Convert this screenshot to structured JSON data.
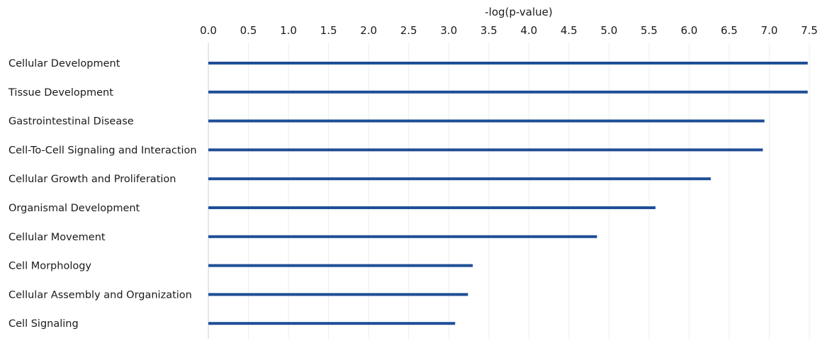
{
  "chart_data": {
    "type": "bar",
    "orientation": "horizontal",
    "xlabel": "-log(p-value)",
    "xlabel_position": "top",
    "xlim": [
      0.0,
      7.5
    ],
    "xticks": [
      "0.0",
      "0.5",
      "1.0",
      "1.5",
      "2.0",
      "2.5",
      "3.0",
      "3.5",
      "4.0",
      "4.5",
      "5.0",
      "5.5",
      "6.0",
      "6.5",
      "7.0",
      "7.5"
    ],
    "categories": [
      "Cellular Development",
      "Tissue Development",
      "Gastrointestinal Disease",
      "Cell-To-Cell Signaling and Interaction",
      "Cellular Growth and Proliferation",
      "Organismal Development",
      "Cellular Movement",
      "Cell Morphology",
      "Cellular Assembly and Organization",
      "Cell Signaling"
    ],
    "values": [
      7.48,
      7.48,
      6.94,
      6.92,
      6.27,
      5.58,
      4.85,
      3.3,
      3.24,
      3.08
    ],
    "bar_color": "#1f4e96",
    "grid": true
  }
}
